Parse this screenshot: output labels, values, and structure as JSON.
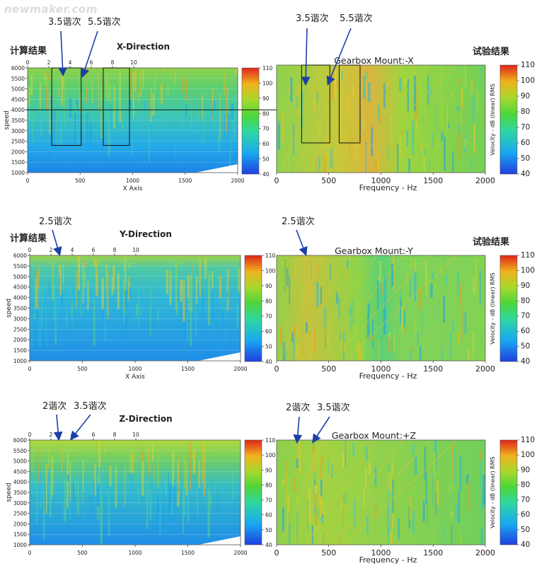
{
  "watermark": "newmaker.com",
  "colors": {
    "arrow": "#1d3fa8",
    "gridline": "#cfe8f5"
  },
  "chart_data": [
    {
      "type": "heatmap",
      "id": "sim-x",
      "panel_label": "计算结果",
      "title": "X-Direction",
      "xlabel": "X Axis",
      "ylabel": "speed",
      "xlim": [
        0,
        2000
      ],
      "x_ticks": [
        "0",
        "500",
        "1000",
        "1500",
        "2000"
      ],
      "ylim": [
        1000,
        6000
      ],
      "y_ticks": [
        "1000",
        "1500",
        "2000",
        "2500",
        "3000",
        "3500",
        "4000",
        "4500",
        "5000",
        "5500",
        "6000"
      ],
      "order_ticks": [
        "0",
        "2",
        "4",
        "6",
        "8",
        "10"
      ],
      "colorbar": {
        "min": 40,
        "max": 110,
        "ticks": [
          "40",
          "50",
          "60",
          "70",
          "80",
          "90",
          "100",
          "110"
        ]
      },
      "grid": true,
      "annotations": [
        {
          "text": "3.5谐次",
          "box": {
            "x": [
              230,
              510
            ],
            "y": [
              2300,
              6000
            ]
          }
        },
        {
          "text": "5.5谐次",
          "box": {
            "x": [
              720,
              970
            ],
            "y": [
              2300,
              6000
            ]
          }
        }
      ],
      "reference_line_speed": 4000
    },
    {
      "type": "heatmap",
      "id": "test-x",
      "panel_label": "试验结果",
      "title": "Gearbox Mount:-X",
      "xlabel": "Frequency - Hz",
      "ylabel": "Velocity - dB (linear) RMS",
      "xlim": [
        0,
        2000
      ],
      "x_ticks": [
        "0",
        "500",
        "1000",
        "1500",
        "2000"
      ],
      "colorbar": {
        "min": 40,
        "max": 110,
        "ticks": [
          "40",
          "50",
          "60",
          "70",
          "80",
          "90",
          "100",
          "110"
        ]
      },
      "grid": false,
      "annotations": [
        {
          "text": "3.5谐次",
          "box": {
            "x": [
              240,
              510
            ]
          }
        },
        {
          "text": "5.5谐次",
          "box": {
            "x": [
              600,
              800
            ]
          }
        }
      ]
    },
    {
      "type": "heatmap",
      "id": "sim-y",
      "panel_label": "计算结果",
      "title": "Y-Direction",
      "xlabel": "X Axis",
      "ylabel": "speed",
      "xlim": [
        0,
        2000
      ],
      "x_ticks": [
        "0",
        "500",
        "1000",
        "1500",
        "2000"
      ],
      "ylim": [
        1000,
        6000
      ],
      "y_ticks": [
        "1000",
        "1500",
        "2000",
        "2500",
        "3000",
        "3500",
        "4000",
        "4500",
        "5000",
        "5500",
        "6000"
      ],
      "order_ticks": [
        "0",
        "2",
        "4",
        "6",
        "8",
        "10"
      ],
      "colorbar": {
        "min": 40,
        "max": 110,
        "ticks": [
          "40",
          "50",
          "60",
          "70",
          "80",
          "90",
          "100",
          "110"
        ]
      },
      "grid": true,
      "annotations": [
        {
          "text": "2.5谐次"
        }
      ]
    },
    {
      "type": "heatmap",
      "id": "test-y",
      "panel_label": "试验结果",
      "title": "Gearbox Mount:-Y",
      "xlabel": "Frequency - Hz",
      "ylabel": "Velocity - dB (linear) RMS",
      "xlim": [
        0,
        2000
      ],
      "x_ticks": [
        "0",
        "500",
        "1000",
        "1500",
        "2000"
      ],
      "colorbar": {
        "min": 40,
        "max": 110,
        "ticks": [
          "40",
          "50",
          "60",
          "70",
          "80",
          "90",
          "100",
          "110"
        ]
      },
      "grid": false,
      "annotations": [
        {
          "text": "2.5谐次"
        }
      ]
    },
    {
      "type": "heatmap",
      "id": "sim-z",
      "panel_label": "",
      "title": "Z-Direction",
      "xlabel": "",
      "ylabel": "speed",
      "xlim": [
        0,
        2000
      ],
      "x_ticks": [
        "0",
        "500",
        "1000",
        "1500",
        "2000"
      ],
      "ylim": [
        1000,
        6000
      ],
      "y_ticks": [
        "1000",
        "1500",
        "2000",
        "2500",
        "3000",
        "3500",
        "4000",
        "4500",
        "5000",
        "5500",
        "6000"
      ],
      "order_ticks": [
        "0",
        "2",
        "4",
        "6",
        "8",
        "10"
      ],
      "colorbar": {
        "min": 40,
        "max": 110,
        "ticks": [
          "40",
          "50",
          "60",
          "70",
          "80",
          "90",
          "100",
          "110"
        ]
      },
      "grid": true,
      "annotations": [
        {
          "text": "2谐次"
        },
        {
          "text": "3.5谐次"
        }
      ]
    },
    {
      "type": "heatmap",
      "id": "test-z",
      "panel_label": "",
      "title": "Gearbox Mount:+Z",
      "xlabel": "Frequency - Hz",
      "ylabel": "Velocity - dB (linear) RMS",
      "xlim": [
        0,
        2000
      ],
      "x_ticks": [
        "0",
        "500",
        "1000",
        "1500",
        "2000"
      ],
      "colorbar": {
        "min": 40,
        "max": 110,
        "ticks": [
          "40",
          "50",
          "60",
          "70",
          "80",
          "90",
          "100",
          "110"
        ]
      },
      "grid": false,
      "annotations": [
        {
          "text": "2谐次"
        },
        {
          "text": "3.5谐次"
        }
      ]
    }
  ]
}
